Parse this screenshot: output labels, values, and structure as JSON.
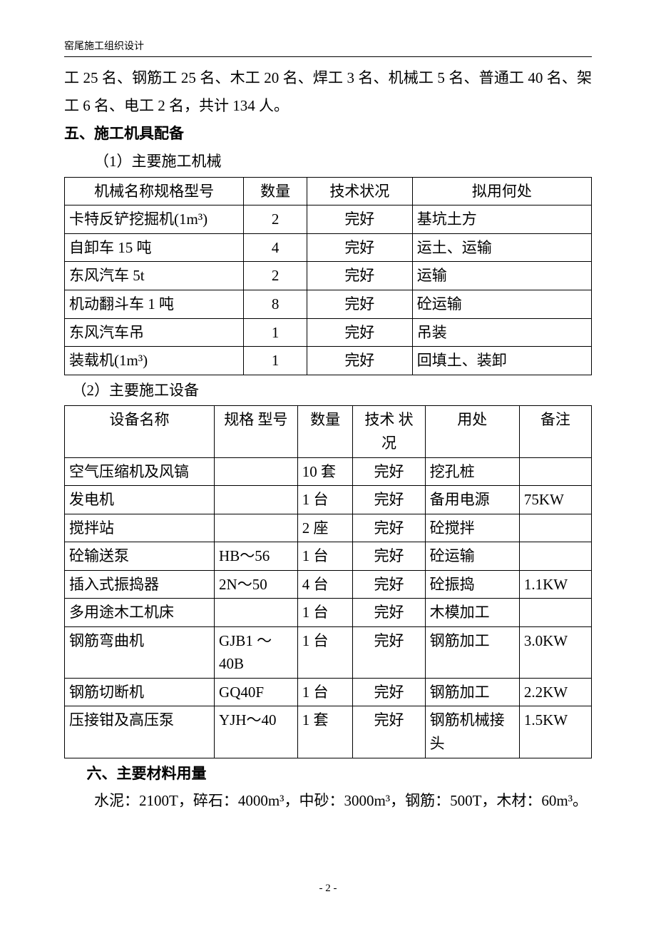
{
  "header": {
    "title": "窑尾施工组织设计"
  },
  "intro": {
    "line1": "工 25 名、钢筋工 25 名、木工 20 名、焊工 3 名、机械工 5 名、普通工 40 名、架工 6 名、电工 2 名，共计 134 人。"
  },
  "section5": {
    "heading": "五、施工机具配备",
    "sub1": "（1）主要施工机械",
    "table1": {
      "headers": [
        "机械名称规格型号",
        "数量",
        "技术状况",
        "拟用何处"
      ],
      "col_align": [
        "center",
        "center",
        "center",
        "center"
      ],
      "rows": [
        {
          "name": "卡特反铲挖掘机(1m³)",
          "qty": "2",
          "status": "完好",
          "use": "基坑土方"
        },
        {
          "name": "自卸车 15 吨",
          "qty": "4",
          "status": "完好",
          "use": "运土、运输"
        },
        {
          "name": "东风汽车 5t",
          "qty": "2",
          "status": "完好",
          "use": "运输"
        },
        {
          "name": "机动翻斗车 1 吨",
          "qty": "8",
          "status": "完好",
          "use": "砼运输"
        },
        {
          "name": "东风汽车吊",
          "qty": "1",
          "status": "完好",
          "use": "吊装"
        },
        {
          "name": "装载机(1m³)",
          "qty": "1",
          "status": "完好",
          "use": "回填土、装卸"
        }
      ],
      "widths": [
        "34%",
        "12%",
        "20%",
        "34%"
      ]
    },
    "sub2": "（2）主要施工设备",
    "table2": {
      "headers": [
        "设备名称",
        "规格 型号",
        "数量",
        "技术 状况",
        "用处",
        "备注"
      ],
      "rows": [
        {
          "name": "空气压缩机及风镐",
          "spec": "",
          "qty": "10 套",
          "status": "完好",
          "use": "挖孔桩",
          "note": ""
        },
        {
          "name": "发电机",
          "spec": "",
          "qty": "1 台",
          "status": "完好",
          "use": "备用电源",
          "note": "75KW"
        },
        {
          "name": "搅拌站",
          "spec": "",
          "qty": "2 座",
          "status": "完好",
          "use": "砼搅拌",
          "note": ""
        },
        {
          "name": "砼输送泵",
          "spec": "HB～56",
          "qty": "1 台",
          "status": "完好",
          "use": "砼运输",
          "note": ""
        },
        {
          "name": "插入式振捣器",
          "spec": "2N～50",
          "qty": "4 台",
          "status": "完好",
          "use": "砼振捣",
          "note": "1.1KW"
        },
        {
          "name": "多用途木工机床",
          "spec": "",
          "qty": "1 台",
          "status": "完好",
          "use": "木模加工",
          "note": ""
        },
        {
          "name": "钢筋弯曲机",
          "spec": "GJB1 ～40B",
          "qty": "1 台",
          "status": "完好",
          "use": "钢筋加工",
          "note": "3.0KW"
        },
        {
          "name": "钢筋切断机",
          "spec": "GQ40F",
          "qty": "1 台",
          "status": "完好",
          "use": "钢筋加工",
          "note": "2.2KW"
        },
        {
          "name": "压接钳及高压泵",
          "spec": "YJH～40",
          "qty": "1 套",
          "status": "完好",
          "use": "钢筋机械接头",
          "note": "1.5KW"
        }
      ],
      "widths": [
        "27%",
        "15%",
        "10%",
        "13%",
        "17%",
        "13%"
      ]
    }
  },
  "section6": {
    "heading": "六、主要材料用量",
    "body": "水泥：2100T，碎石：4000m³，中砂：3000m³，钢筋：500T，木材：60m³。"
  },
  "footer": {
    "page": "- 2 -"
  }
}
